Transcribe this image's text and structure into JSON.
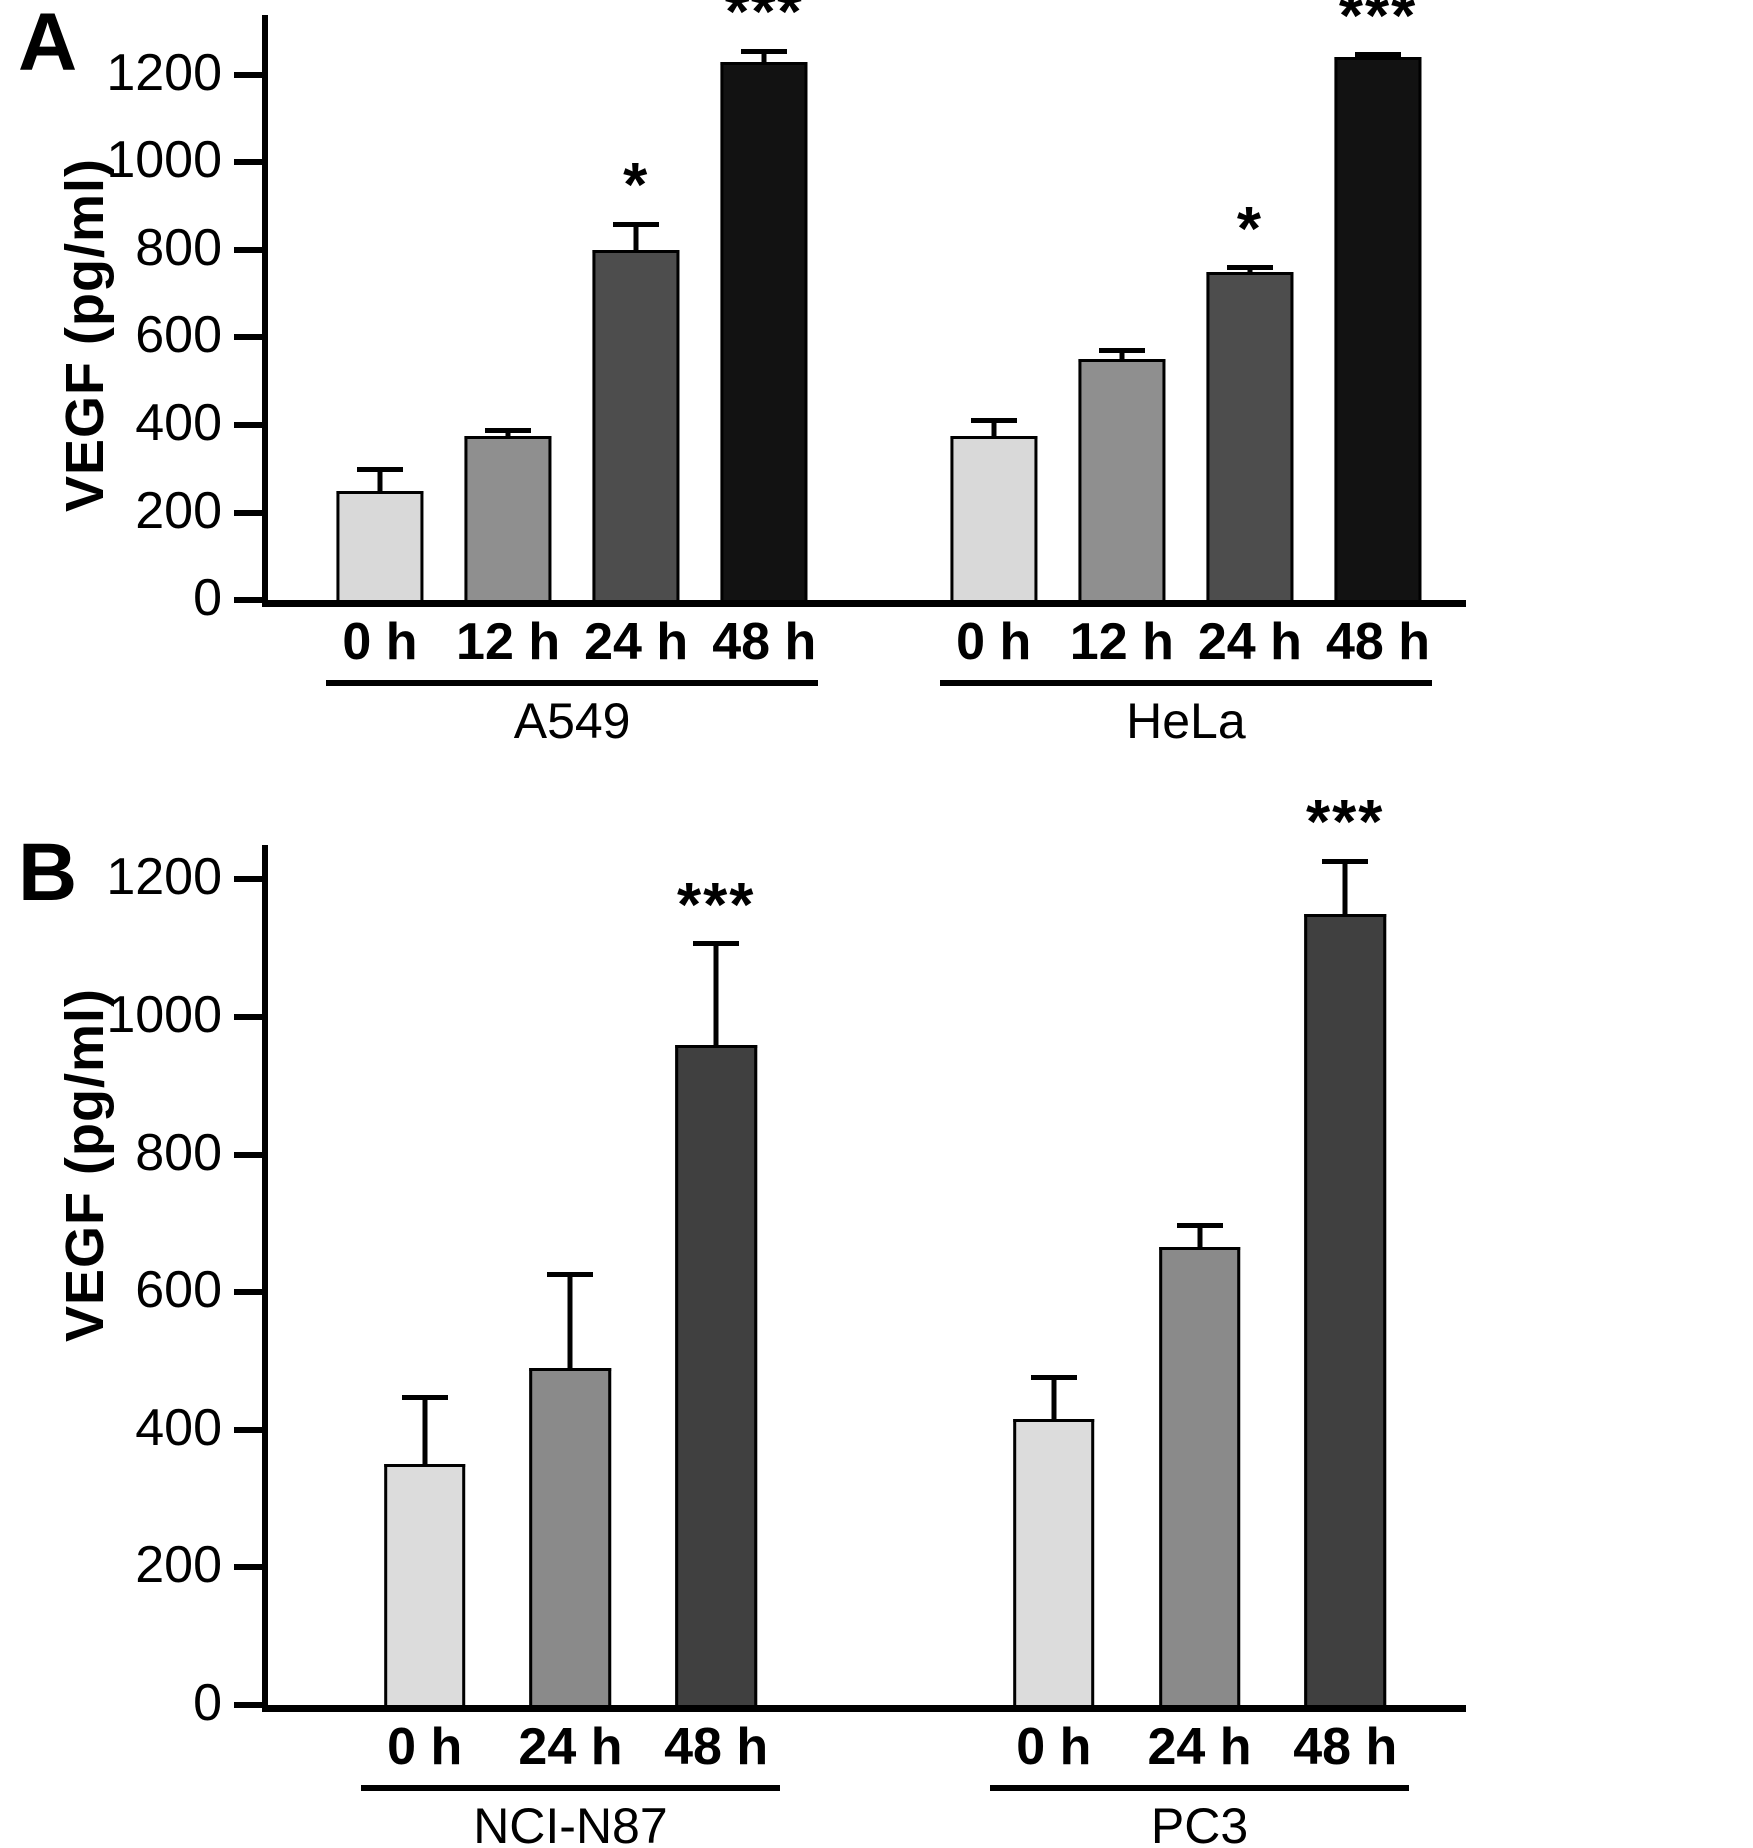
{
  "figure": {
    "panels": [
      "A",
      "B"
    ]
  },
  "chart_data": [
    {
      "type": "bar",
      "panel": "A",
      "title": "",
      "xlabel": "",
      "ylabel": "VEGF (pg/ml)",
      "ylim": [
        0,
        1337
      ],
      "yticks": [
        0,
        200,
        400,
        600,
        800,
        1000,
        1200
      ],
      "grid": false,
      "legend": "none",
      "layout": {
        "pad_left_pct": 4,
        "pad_right_pct": 2,
        "group_gap_pct": 9,
        "bar_width_pct": 68
      },
      "groups": [
        {
          "name": "A549",
          "bars": [
            {
              "label": "0 h",
              "value": 250,
              "error": 55,
              "sig": "",
              "color": "#d9d9d9"
            },
            {
              "label": "12 h",
              "value": 375,
              "error": 18,
              "sig": "",
              "color": "#8f8f8f"
            },
            {
              "label": "24 h",
              "value": 800,
              "error": 65,
              "sig": "*",
              "color": "#4d4d4d"
            },
            {
              "label": "48 h",
              "value": 1230,
              "error": 30,
              "sig": "***",
              "color": "#121212"
            }
          ]
        },
        {
          "name": "HeLa",
          "bars": [
            {
              "label": "0 h",
              "value": 375,
              "error": 40,
              "sig": "",
              "color": "#d9d9d9"
            },
            {
              "label": "12 h",
              "value": 550,
              "error": 25,
              "sig": "",
              "color": "#8f8f8f"
            },
            {
              "label": "24 h",
              "value": 750,
              "error": 15,
              "sig": "*",
              "color": "#4d4d4d"
            },
            {
              "label": "48 h",
              "value": 1240,
              "error": 12,
              "sig": "***",
              "color": "#121212"
            }
          ]
        }
      ]
    },
    {
      "type": "bar",
      "panel": "B",
      "title": "",
      "xlabel": "",
      "ylabel": "VEGF (pg/ml)",
      "ylim": [
        0,
        1250
      ],
      "yticks": [
        0,
        200,
        400,
        600,
        800,
        1000,
        1200
      ],
      "grid": false,
      "legend": "none",
      "layout": {
        "pad_left_pct": 7,
        "pad_right_pct": 4,
        "group_gap_pct": 18,
        "bar_width_pct": 56
      },
      "groups": [
        {
          "name": "NCI-N87",
          "bars": [
            {
              "label": "0 h",
              "value": 350,
              "error": 100,
              "sig": "",
              "color": "#dcdcdc"
            },
            {
              "label": "24 h",
              "value": 490,
              "error": 140,
              "sig": "",
              "color": "#8a8a8a"
            },
            {
              "label": "48 h",
              "value": 960,
              "error": 150,
              "sig": "***",
              "color": "#404040"
            }
          ]
        },
        {
          "name": "PC3",
          "bars": [
            {
              "label": "0 h",
              "value": 415,
              "error": 65,
              "sig": "",
              "color": "#dcdcdc"
            },
            {
              "label": "24 h",
              "value": 665,
              "error": 35,
              "sig": "",
              "color": "#8a8a8a"
            },
            {
              "label": "48 h",
              "value": 1150,
              "error": 80,
              "sig": "***",
              "color": "#404040"
            }
          ]
        }
      ]
    }
  ]
}
